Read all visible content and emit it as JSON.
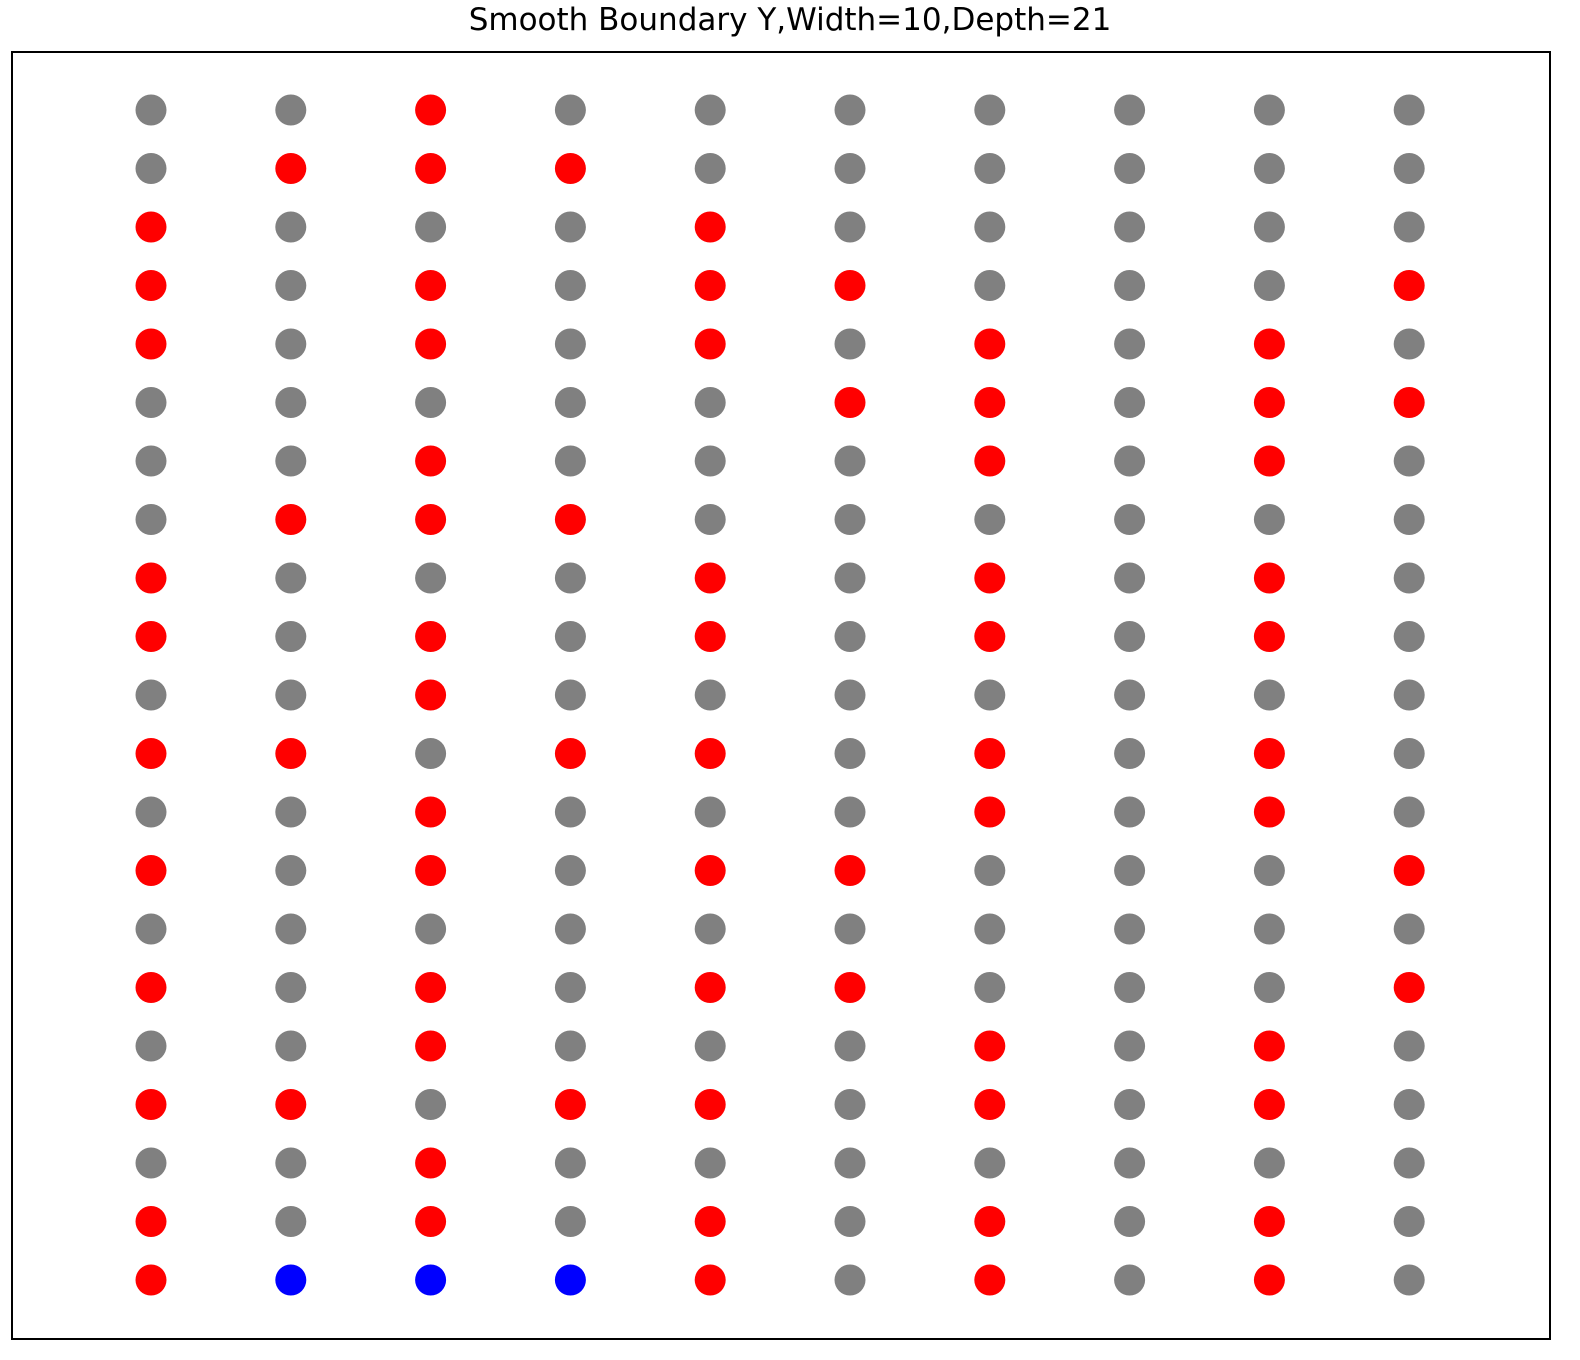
{
  "chart_data": {
    "type": "scatter",
    "title": "Smooth Boundary Y,Width=10,Depth=21",
    "xlabel": "",
    "ylabel": "",
    "grid": false,
    "axes_ticks": false,
    "columns": 10,
    "rows": 21,
    "colors": {
      "R": "#ff0000",
      "G": "#808080",
      "B": "#0000ff"
    },
    "color_names": {
      "R": "red",
      "G": "gray",
      "B": "blue"
    },
    "grid_colors_top_to_bottom": [
      "GGRGGGGGGG",
      "GRRRGGGGGG",
      "RGGGRGGGGG",
      "RGRGRRGGGR",
      "RGRGRGRGRG",
      "GGGGGRRGRR",
      "GGRGGGRGRG",
      "GRRRGGGGGG",
      "RGGGRGRGRG",
      "RGRGRGRGRG",
      "GGRGGGGGGG",
      "RRGRRGRGRG",
      "GGRGGGRGRG",
      "RGRGRRGGGR",
      "GGGGGGGGGG",
      "RGRGRRGGGR",
      "GGRGGGRGRG",
      "RRGRRGRGRG",
      "GGRGGGGGGG",
      "RGRGRGRGRG",
      "RBBBRGRGRG"
    ]
  }
}
